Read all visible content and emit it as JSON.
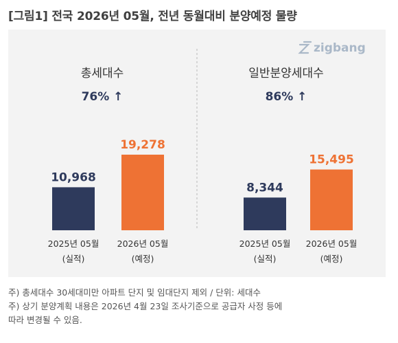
{
  "title": "[그림1] 전국 2026년 05월, 전년 동월대비 분양예정 물량",
  "logo_text": "zigbang",
  "colors": {
    "bar_2025": "#2e3a5c",
    "bar_2026": "#ee7234",
    "label_2025": "#2e3a5c",
    "label_2026": "#ee7234",
    "panel_bg": "#f3f3f3"
  },
  "chart_data": [
    {
      "type": "bar",
      "title": "총세대수",
      "subtitle": "76% ↑",
      "categories": [
        "2025년 05월\n(실적)",
        "2026년 05월\n(예정)"
      ],
      "values": [
        10968,
        19278
      ],
      "value_labels": [
        "10,968",
        "19,278"
      ],
      "ylim": [
        0,
        19278
      ]
    },
    {
      "type": "bar",
      "title": "일반분양세대수",
      "subtitle": "86% ↑",
      "categories": [
        "2025년 05월\n(실적)",
        "2026년 05월\n(예정)"
      ],
      "values": [
        8344,
        15495
      ],
      "value_labels": [
        "8,344",
        "15,495"
      ],
      "ylim": [
        0,
        19278
      ]
    }
  ],
  "notes": [
    "주) 총세대수 30세대미만 아파트  단지 및 임대단지 제외 / 단위: 세대수",
    "주) 상기 분양계획 내용은 2026년 4월 23일 조사기준으로 공급자 사정 등에",
    "따라 변경될 수 있음."
  ]
}
